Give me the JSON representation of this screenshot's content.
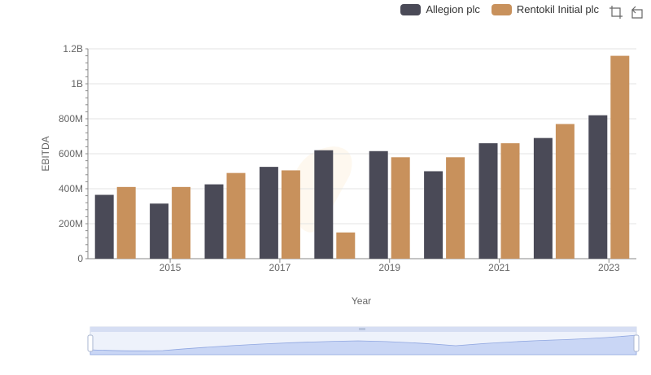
{
  "chart_data": {
    "type": "bar",
    "xlabel": "Year",
    "ylabel": "EBITDA",
    "categories": [
      "2014",
      "2015",
      "2016",
      "2017",
      "2018",
      "2019",
      "2020",
      "2021",
      "2022",
      "2023"
    ],
    "x_tick_labels": [
      "2015",
      "2017",
      "2019",
      "2021",
      "2023"
    ],
    "y_tick_labels": [
      "0",
      "200M",
      "400M",
      "600M",
      "800M",
      "1B",
      "1.2B"
    ],
    "ylim": [
      0,
      1200000000
    ],
    "legend_position": "top-right",
    "grid": true,
    "series": [
      {
        "name": "Allegion plc",
        "color": "#4a4a57",
        "values": [
          365000000,
          315000000,
          425000000,
          525000000,
          620000000,
          615000000,
          500000000,
          660000000,
          690000000,
          820000000
        ]
      },
      {
        "name": "Rentokil Initial plc",
        "color": "#c8915c",
        "values": [
          410000000,
          410000000,
          490000000,
          505000000,
          150000000,
          580000000,
          580000000,
          660000000,
          770000000,
          1160000000
        ]
      }
    ]
  },
  "toolbar": {
    "zoom_icon": "zoom-select-icon",
    "restore_icon": "restore-icon"
  }
}
